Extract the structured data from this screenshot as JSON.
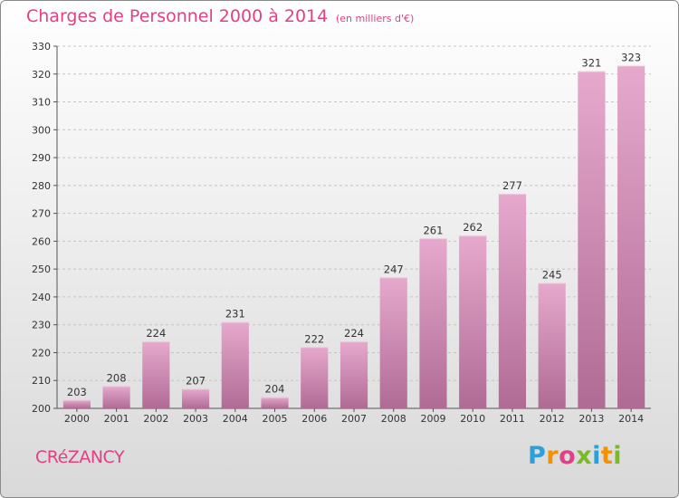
{
  "header": {
    "title": "Charges de Personnel 2000 à 2014",
    "subtitle": "(en milliers d'€)"
  },
  "footer": {
    "commune": "CRéZANCY",
    "logo_letters": [
      "P",
      "r",
      "o",
      "x",
      "i",
      "t",
      "i"
    ]
  },
  "colors": {
    "accent": "#e33f85",
    "bar_light": "#e6a9cd",
    "bar_dark": "#b06b95"
  },
  "chart_data": {
    "type": "bar",
    "categories": [
      "2000",
      "2001",
      "2002",
      "2003",
      "2004",
      "2005",
      "2006",
      "2007",
      "2008",
      "2009",
      "2010",
      "2011",
      "2012",
      "2013",
      "2014"
    ],
    "values": [
      203,
      208,
      224,
      207,
      231,
      204,
      222,
      224,
      247,
      261,
      262,
      277,
      245,
      321,
      323
    ],
    "title": "Charges de Personnel 2000 à 2014",
    "subtitle": "(en milliers d'€)",
    "xlabel": "",
    "ylabel": "",
    "ylim": [
      200,
      330
    ],
    "yticks": [
      200,
      210,
      220,
      230,
      240,
      250,
      260,
      270,
      280,
      290,
      300,
      310,
      320,
      330
    ],
    "grid": true,
    "legend": "none"
  }
}
